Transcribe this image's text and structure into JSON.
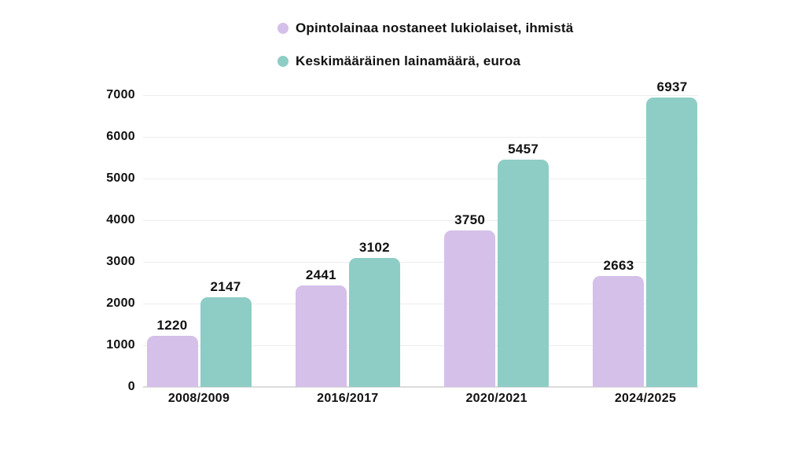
{
  "legend": {
    "items": [
      {
        "label": "Opintolainaa nostaneet lukiolaiset, ihmistä",
        "color": "#d4c0e8"
      },
      {
        "label": "Keskimääräinen lainamäärä, euroa",
        "color": "#8ecdc5"
      }
    ]
  },
  "chart_data": {
    "type": "bar",
    "title": "",
    "xlabel": "",
    "ylabel": "",
    "categories": [
      "2008/2009",
      "2016/2017",
      "2020/2021",
      "2024/2025"
    ],
    "series": [
      {
        "name": "Opintolainaa nostaneet lukiolaiset, ihmistä",
        "color": "#d4c0e8",
        "values": [
          1220,
          2441,
          3750,
          2663
        ]
      },
      {
        "name": "Keskimääräinen lainamäärä, euroa",
        "color": "#8ecdc5",
        "values": [
          2147,
          3102,
          5457,
          6937
        ]
      }
    ],
    "ylim": [
      0,
      7000
    ],
    "yticks": [
      0,
      1000,
      2000,
      3000,
      4000,
      5000,
      6000,
      7000
    ],
    "grid": true,
    "value_labels": true,
    "legend_position": "top-center"
  },
  "colors": {
    "background": "#ffffff",
    "text": "#111111",
    "gridline": "#ededed",
    "baseline": "#dcdcdc",
    "series_1": "#d4c0e8",
    "series_2": "#8ecdc5"
  }
}
